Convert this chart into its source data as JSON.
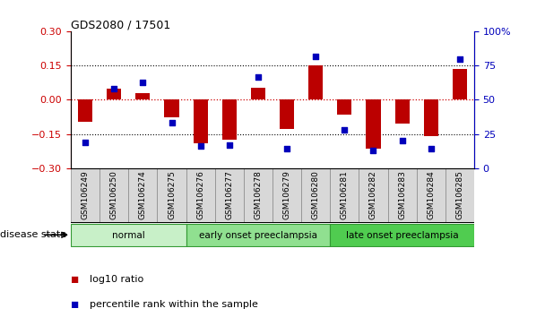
{
  "title": "GDS2080 / 17501",
  "samples": [
    "GSM106249",
    "GSM106250",
    "GSM106274",
    "GSM106275",
    "GSM106276",
    "GSM106277",
    "GSM106278",
    "GSM106279",
    "GSM106280",
    "GSM106281",
    "GSM106282",
    "GSM106283",
    "GSM106284",
    "GSM106285"
  ],
  "log10_ratio": [
    -0.095,
    0.05,
    0.03,
    -0.075,
    -0.19,
    -0.175,
    0.055,
    -0.13,
    0.15,
    -0.065,
    -0.215,
    -0.105,
    -0.16,
    0.135
  ],
  "percentile_rank": [
    19,
    58,
    63,
    33,
    16,
    17,
    67,
    14,
    82,
    28,
    13,
    20,
    14,
    80
  ],
  "groups": [
    {
      "label": "normal",
      "start": 0,
      "end": 4,
      "color": "#c8f0c8"
    },
    {
      "label": "early onset preeclampsia",
      "start": 4,
      "end": 9,
      "color": "#90e090"
    },
    {
      "label": "late onset preeclampsia",
      "start": 9,
      "end": 14,
      "color": "#50cc50"
    }
  ],
  "ylim_left": [
    -0.3,
    0.3
  ],
  "ylim_right": [
    0,
    100
  ],
  "yticks_left": [
    -0.3,
    -0.15,
    0,
    0.15,
    0.3
  ],
  "yticks_right": [
    0,
    25,
    50,
    75,
    100
  ],
  "ytick_labels_right": [
    "0",
    "25",
    "50",
    "75",
    "100%"
  ],
  "bar_color": "#bb0000",
  "dot_color": "#0000bb",
  "zero_line_color": "#cc0000",
  "hline_color": "#000000",
  "left_tick_color": "#cc0000",
  "right_tick_color": "#0000bb",
  "legend_items": [
    {
      "label": "log10 ratio",
      "color": "#bb0000"
    },
    {
      "label": "percentile rank within the sample",
      "color": "#0000bb"
    }
  ],
  "disease_state_label": "disease state",
  "figsize": [
    6.08,
    3.54
  ],
  "dpi": 100
}
